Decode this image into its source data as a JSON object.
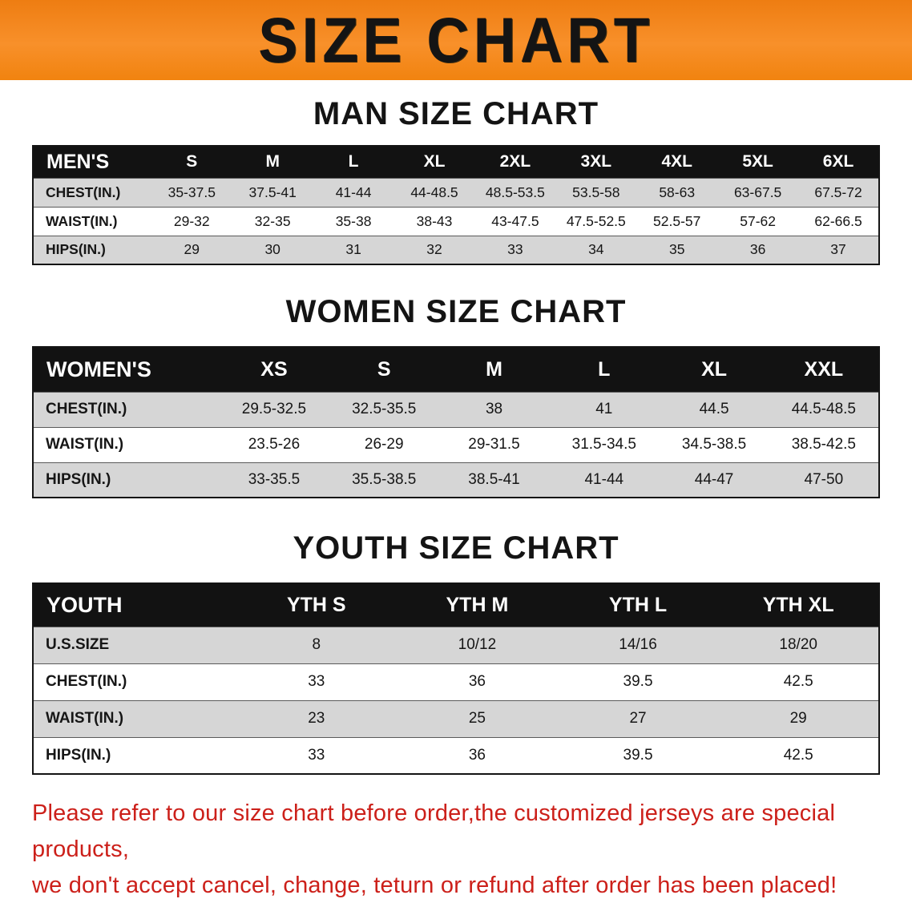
{
  "banner": {
    "title": "SIZE CHART"
  },
  "sections": [
    {
      "heading": "MAN SIZE CHART",
      "table": {
        "header": [
          "MEN'S",
          "S",
          "M",
          "L",
          "XL",
          "2XL",
          "3XL",
          "4XL",
          "5XL",
          "6XL"
        ],
        "rows": [
          [
            "CHEST(IN.)",
            "35-37.5",
            "37.5-41",
            "41-44",
            "44-48.5",
            "48.5-53.5",
            "53.5-58",
            "58-63",
            "63-67.5",
            "67.5-72"
          ],
          [
            "WAIST(IN.)",
            "29-32",
            "32-35",
            "35-38",
            "38-43",
            "43-47.5",
            "47.5-52.5",
            "52.5-57",
            "57-62",
            "62-66.5"
          ],
          [
            "HIPS(IN.)",
            "29",
            "30",
            "31",
            "32",
            "33",
            "34",
            "35",
            "36",
            "37"
          ]
        ]
      }
    },
    {
      "heading": "WOMEN SIZE CHART",
      "table": {
        "header": [
          "WOMEN'S",
          "XS",
          "S",
          "M",
          "L",
          "XL",
          "XXL"
        ],
        "rows": [
          [
            "CHEST(IN.)",
            "29.5-32.5",
            "32.5-35.5",
            "38",
            "41",
            "44.5",
            "44.5-48.5"
          ],
          [
            "WAIST(IN.)",
            "23.5-26",
            "26-29",
            "29-31.5",
            "31.5-34.5",
            "34.5-38.5",
            "38.5-42.5"
          ],
          [
            "HIPS(IN.)",
            "33-35.5",
            "35.5-38.5",
            "38.5-41",
            "41-44",
            "44-47",
            "47-50"
          ]
        ]
      }
    },
    {
      "heading": "YOUTH SIZE CHART",
      "table": {
        "header": [
          "YOUTH",
          "YTH S",
          "YTH M",
          "YTH L",
          "YTH XL"
        ],
        "rows": [
          [
            "U.S.SIZE",
            "8",
            "10/12",
            "14/16",
            "18/20"
          ],
          [
            "CHEST(IN.)",
            "33",
            "36",
            "39.5",
            "42.5"
          ],
          [
            "WAIST(IN.)",
            "23",
            "25",
            "27",
            "29"
          ],
          [
            "HIPS(IN.)",
            "33",
            "36",
            "39.5",
            "42.5"
          ]
        ]
      }
    }
  ],
  "disclaimer": {
    "line1": "Please refer to our size chart before order,the customized jerseys are special products,",
    "line2": "we don't accept cancel, change, teturn or refund after order has been placed!"
  },
  "colors": {
    "banner_orange": "#f6861b",
    "table_header_black": "#121212",
    "row_gray": "#d6d6d6",
    "disclaimer_red": "#cc201a"
  }
}
